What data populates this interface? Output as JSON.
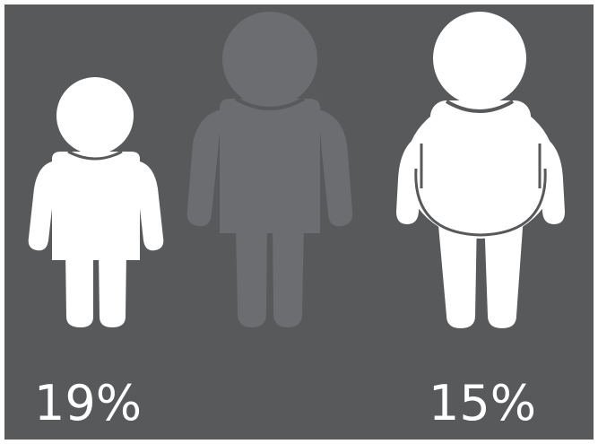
{
  "colors": {
    "background": "#58595b",
    "highlight_figure": "#ffffff",
    "muted_figure": "#6c6d70",
    "text": "#ffffff"
  },
  "figures": [
    {
      "icon": "child-figure-icon",
      "highlighted": true
    },
    {
      "icon": "adult-figure-icon",
      "highlighted": false
    },
    {
      "icon": "overweight-figure-icon",
      "highlighted": true
    }
  ],
  "stats": {
    "left_value": "19%",
    "right_value": "15%"
  }
}
